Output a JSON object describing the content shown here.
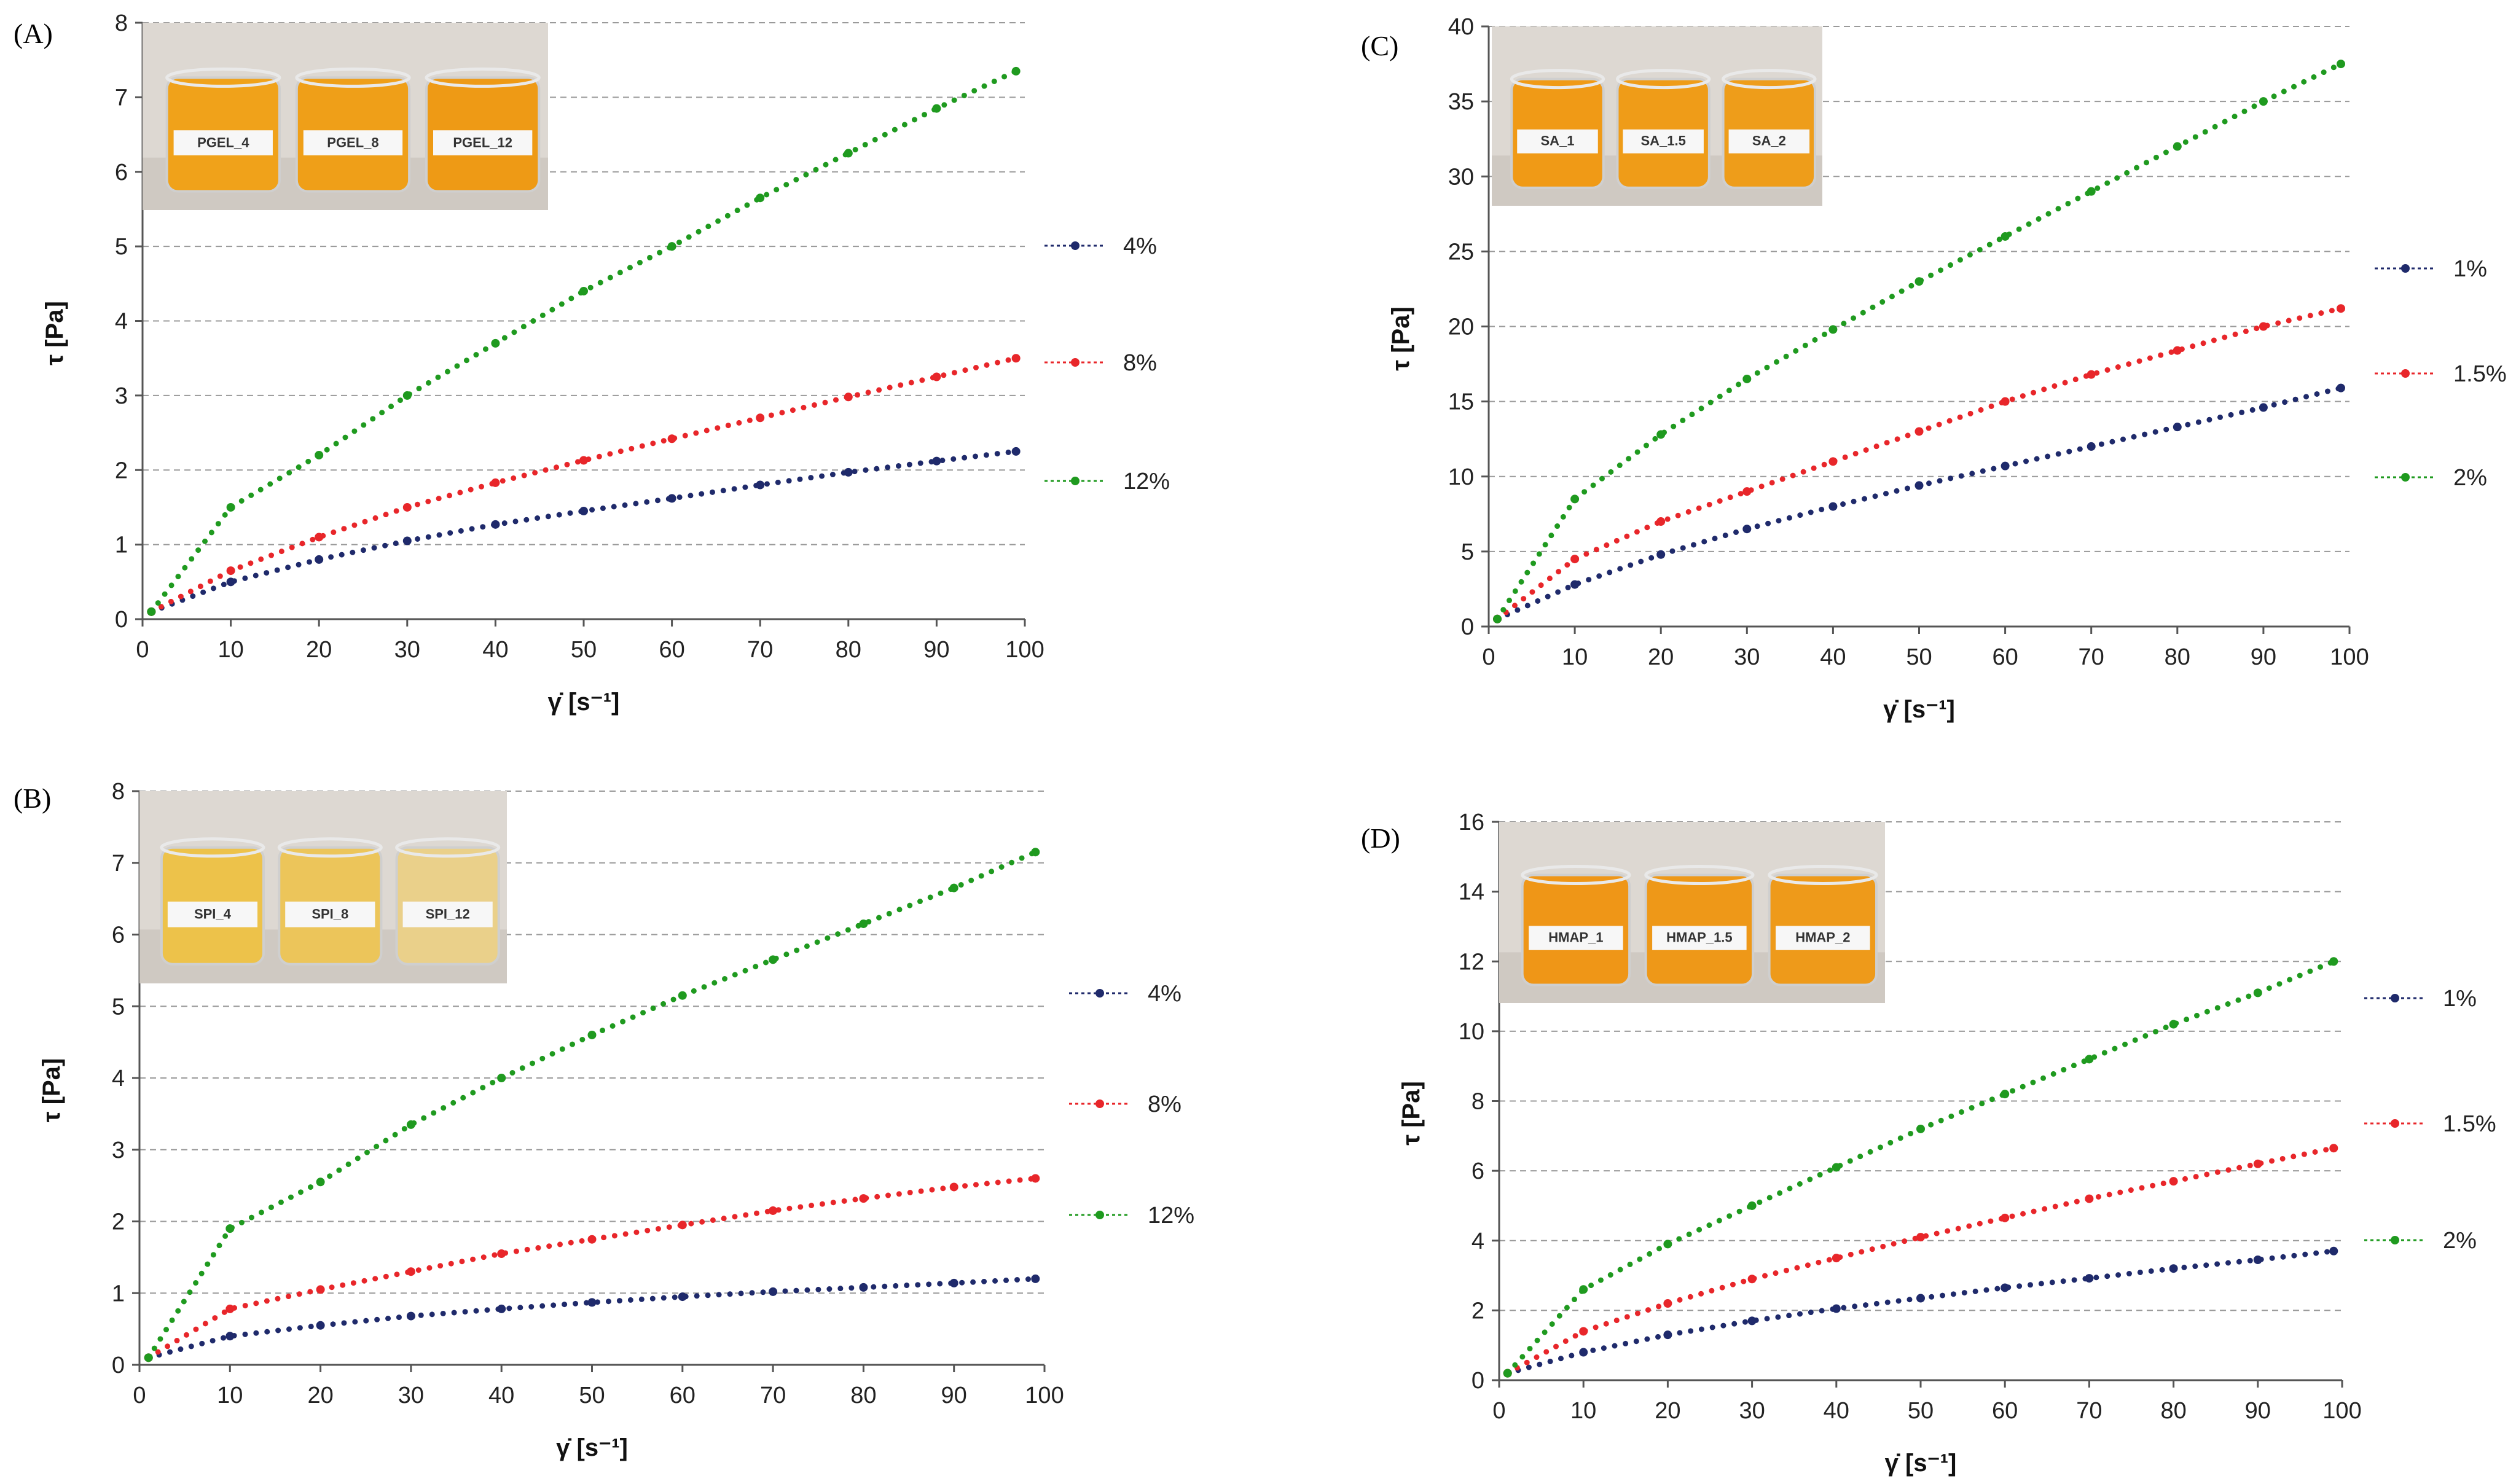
{
  "chart_data": [
    {
      "id": "A",
      "panel_label": "(A)",
      "type": "line",
      "xlabel": "γ̇ [s⁻¹]",
      "ylabel": "τ [Pa]",
      "xlim": [
        0,
        100
      ],
      "ylim": [
        0,
        8
      ],
      "xticks": [
        0,
        10,
        20,
        30,
        40,
        50,
        60,
        70,
        80,
        90,
        100
      ],
      "yticks": [
        0,
        1,
        2,
        3,
        4,
        5,
        6,
        7,
        8
      ],
      "grid": "horizontal dashed",
      "legend_position": "right",
      "photo_labels": [
        "PGEL_4",
        "PGEL_8",
        "PGEL_12"
      ],
      "series": [
        {
          "name": "4%",
          "color": "#1f2a6b",
          "x": [
            1,
            10,
            20,
            30,
            40,
            50,
            60,
            70,
            80,
            90,
            99
          ],
          "values": [
            0.1,
            0.5,
            0.8,
            1.05,
            1.27,
            1.45,
            1.62,
            1.8,
            1.97,
            2.12,
            2.25
          ]
        },
        {
          "name": "8%",
          "color": "#e8262a",
          "x": [
            1,
            10,
            20,
            30,
            40,
            50,
            60,
            70,
            80,
            90,
            99
          ],
          "values": [
            0.1,
            0.65,
            1.1,
            1.5,
            1.83,
            2.13,
            2.42,
            2.7,
            2.98,
            3.25,
            3.5
          ]
        },
        {
          "name": "12%",
          "color": "#1f9a1f",
          "x": [
            1,
            10,
            20,
            30,
            40,
            50,
            60,
            70,
            80,
            90,
            99
          ],
          "values": [
            0.1,
            1.5,
            2.2,
            3.0,
            3.7,
            4.4,
            5.0,
            5.65,
            6.25,
            6.85,
            7.35
          ]
        }
      ]
    },
    {
      "id": "B",
      "panel_label": "(B)",
      "type": "line",
      "xlabel": "γ̇ [s⁻¹]",
      "ylabel": "τ [Pa]",
      "xlim": [
        0,
        100
      ],
      "ylim": [
        0,
        8
      ],
      "xticks": [
        0,
        10,
        20,
        30,
        40,
        50,
        60,
        70,
        80,
        90,
        100
      ],
      "yticks": [
        0,
        1,
        2,
        3,
        4,
        5,
        6,
        7,
        8
      ],
      "grid": "horizontal dashed",
      "legend_position": "right",
      "photo_labels": [
        "SPI_4",
        "SPI_8",
        "SPI_12"
      ],
      "series": [
        {
          "name": "4%",
          "color": "#1f2a6b",
          "x": [
            1,
            10,
            20,
            30,
            40,
            50,
            60,
            70,
            80,
            90,
            99
          ],
          "values": [
            0.1,
            0.4,
            0.55,
            0.68,
            0.78,
            0.87,
            0.95,
            1.02,
            1.08,
            1.14,
            1.2
          ]
        },
        {
          "name": "8%",
          "color": "#e8262a",
          "x": [
            1,
            10,
            20,
            30,
            40,
            50,
            60,
            70,
            80,
            90,
            99
          ],
          "values": [
            0.1,
            0.78,
            1.05,
            1.3,
            1.55,
            1.75,
            1.95,
            2.15,
            2.32,
            2.48,
            2.6
          ]
        },
        {
          "name": "12%",
          "color": "#1f9a1f",
          "x": [
            1,
            10,
            20,
            30,
            40,
            50,
            60,
            70,
            80,
            90,
            99
          ],
          "values": [
            0.1,
            1.9,
            2.55,
            3.35,
            4.0,
            4.6,
            5.15,
            5.65,
            6.15,
            6.65,
            7.15
          ]
        }
      ]
    },
    {
      "id": "C",
      "panel_label": "(C)",
      "type": "line",
      "xlabel": "γ̇ [s⁻¹]",
      "ylabel": "τ [Pa]",
      "xlim": [
        0,
        100
      ],
      "ylim": [
        0,
        40
      ],
      "xticks": [
        0,
        10,
        20,
        30,
        40,
        50,
        60,
        70,
        80,
        90,
        100
      ],
      "yticks": [
        0,
        5,
        10,
        15,
        20,
        25,
        30,
        35,
        40
      ],
      "grid": "horizontal dashed",
      "legend_position": "right",
      "photo_labels": [
        "SA_1",
        "SA_1.5",
        "SA_2"
      ],
      "series": [
        {
          "name": "1%",
          "color": "#1f2a6b",
          "x": [
            1,
            10,
            20,
            30,
            40,
            50,
            60,
            70,
            80,
            90,
            99
          ],
          "values": [
            0.5,
            2.8,
            4.8,
            6.5,
            8.0,
            9.4,
            10.7,
            12.0,
            13.3,
            14.6,
            15.9
          ]
        },
        {
          "name": "1.5%",
          "color": "#e8262a",
          "x": [
            1,
            10,
            20,
            30,
            40,
            50,
            60,
            70,
            80,
            90,
            99
          ],
          "values": [
            0.5,
            4.5,
            7.0,
            9.0,
            11.0,
            13.0,
            15.0,
            16.8,
            18.4,
            20.0,
            21.2
          ]
        },
        {
          "name": "2%",
          "color": "#1f9a1f",
          "x": [
            1,
            10,
            20,
            30,
            40,
            50,
            60,
            70,
            80,
            90,
            99
          ],
          "values": [
            0.5,
            8.5,
            12.8,
            16.5,
            19.8,
            23.0,
            26.0,
            29.0,
            32.0,
            35.0,
            37.5
          ]
        }
      ]
    },
    {
      "id": "D",
      "panel_label": "(D)",
      "type": "line",
      "xlabel": "γ̇ [s⁻¹]",
      "ylabel": "τ [Pa]",
      "xlim": [
        0,
        100
      ],
      "ylim": [
        0,
        16
      ],
      "xticks": [
        0,
        10,
        20,
        30,
        40,
        50,
        60,
        70,
        80,
        90,
        100
      ],
      "yticks": [
        0,
        2,
        4,
        6,
        8,
        10,
        12,
        14,
        16
      ],
      "grid": "horizontal dashed",
      "legend_position": "right",
      "photo_labels": [
        "HMAP_1",
        "HMAP_1.5",
        "HMAP_2"
      ],
      "series": [
        {
          "name": "1%",
          "color": "#1f2a6b",
          "x": [
            1,
            10,
            20,
            30,
            40,
            50,
            60,
            70,
            80,
            90,
            99
          ],
          "values": [
            0.2,
            0.8,
            1.3,
            1.7,
            2.05,
            2.35,
            2.65,
            2.92,
            3.2,
            3.45,
            3.7
          ]
        },
        {
          "name": "1.5%",
          "color": "#e8262a",
          "x": [
            1,
            10,
            20,
            30,
            40,
            50,
            60,
            70,
            80,
            90,
            99
          ],
          "values": [
            0.2,
            1.4,
            2.2,
            2.9,
            3.5,
            4.1,
            4.65,
            5.2,
            5.7,
            6.2,
            6.65
          ]
        },
        {
          "name": "2%",
          "color": "#1f9a1f",
          "x": [
            1,
            10,
            20,
            30,
            40,
            50,
            60,
            70,
            80,
            90,
            99
          ],
          "values": [
            0.2,
            2.6,
            3.9,
            5.0,
            6.1,
            7.2,
            8.2,
            9.2,
            10.2,
            11.1,
            12.0
          ]
        }
      ]
    }
  ]
}
